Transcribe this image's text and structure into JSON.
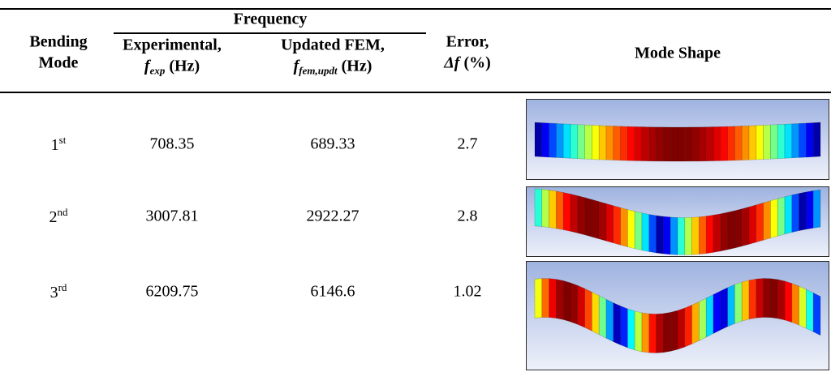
{
  "table": {
    "header": {
      "mode": [
        "Bending",
        "Mode"
      ],
      "group": "Frequency",
      "experimental": {
        "label": "Experimental,",
        "symbol": "f",
        "subscript": "exp",
        "unit": "(Hz)"
      },
      "fem": {
        "label": "Updated FEM,",
        "symbol": "f",
        "subscript": "fem,updt",
        "unit": "(Hz)"
      },
      "error": {
        "label": "Error,",
        "symbol": "Δf",
        "unit": "(%)"
      },
      "shape": "Mode Shape"
    },
    "rows": [
      {
        "mode": "1",
        "suffix": "st",
        "experimental": "708.35",
        "fem": "689.33",
        "error": "2.7"
      },
      {
        "mode": "2",
        "suffix": "nd",
        "experimental": "3007.81",
        "fem": "2922.27",
        "error": "2.8"
      },
      {
        "mode": "3",
        "suffix": "rd",
        "experimental": "6209.75",
        "fem": "6146.6",
        "error": "1.02"
      }
    ]
  }
}
